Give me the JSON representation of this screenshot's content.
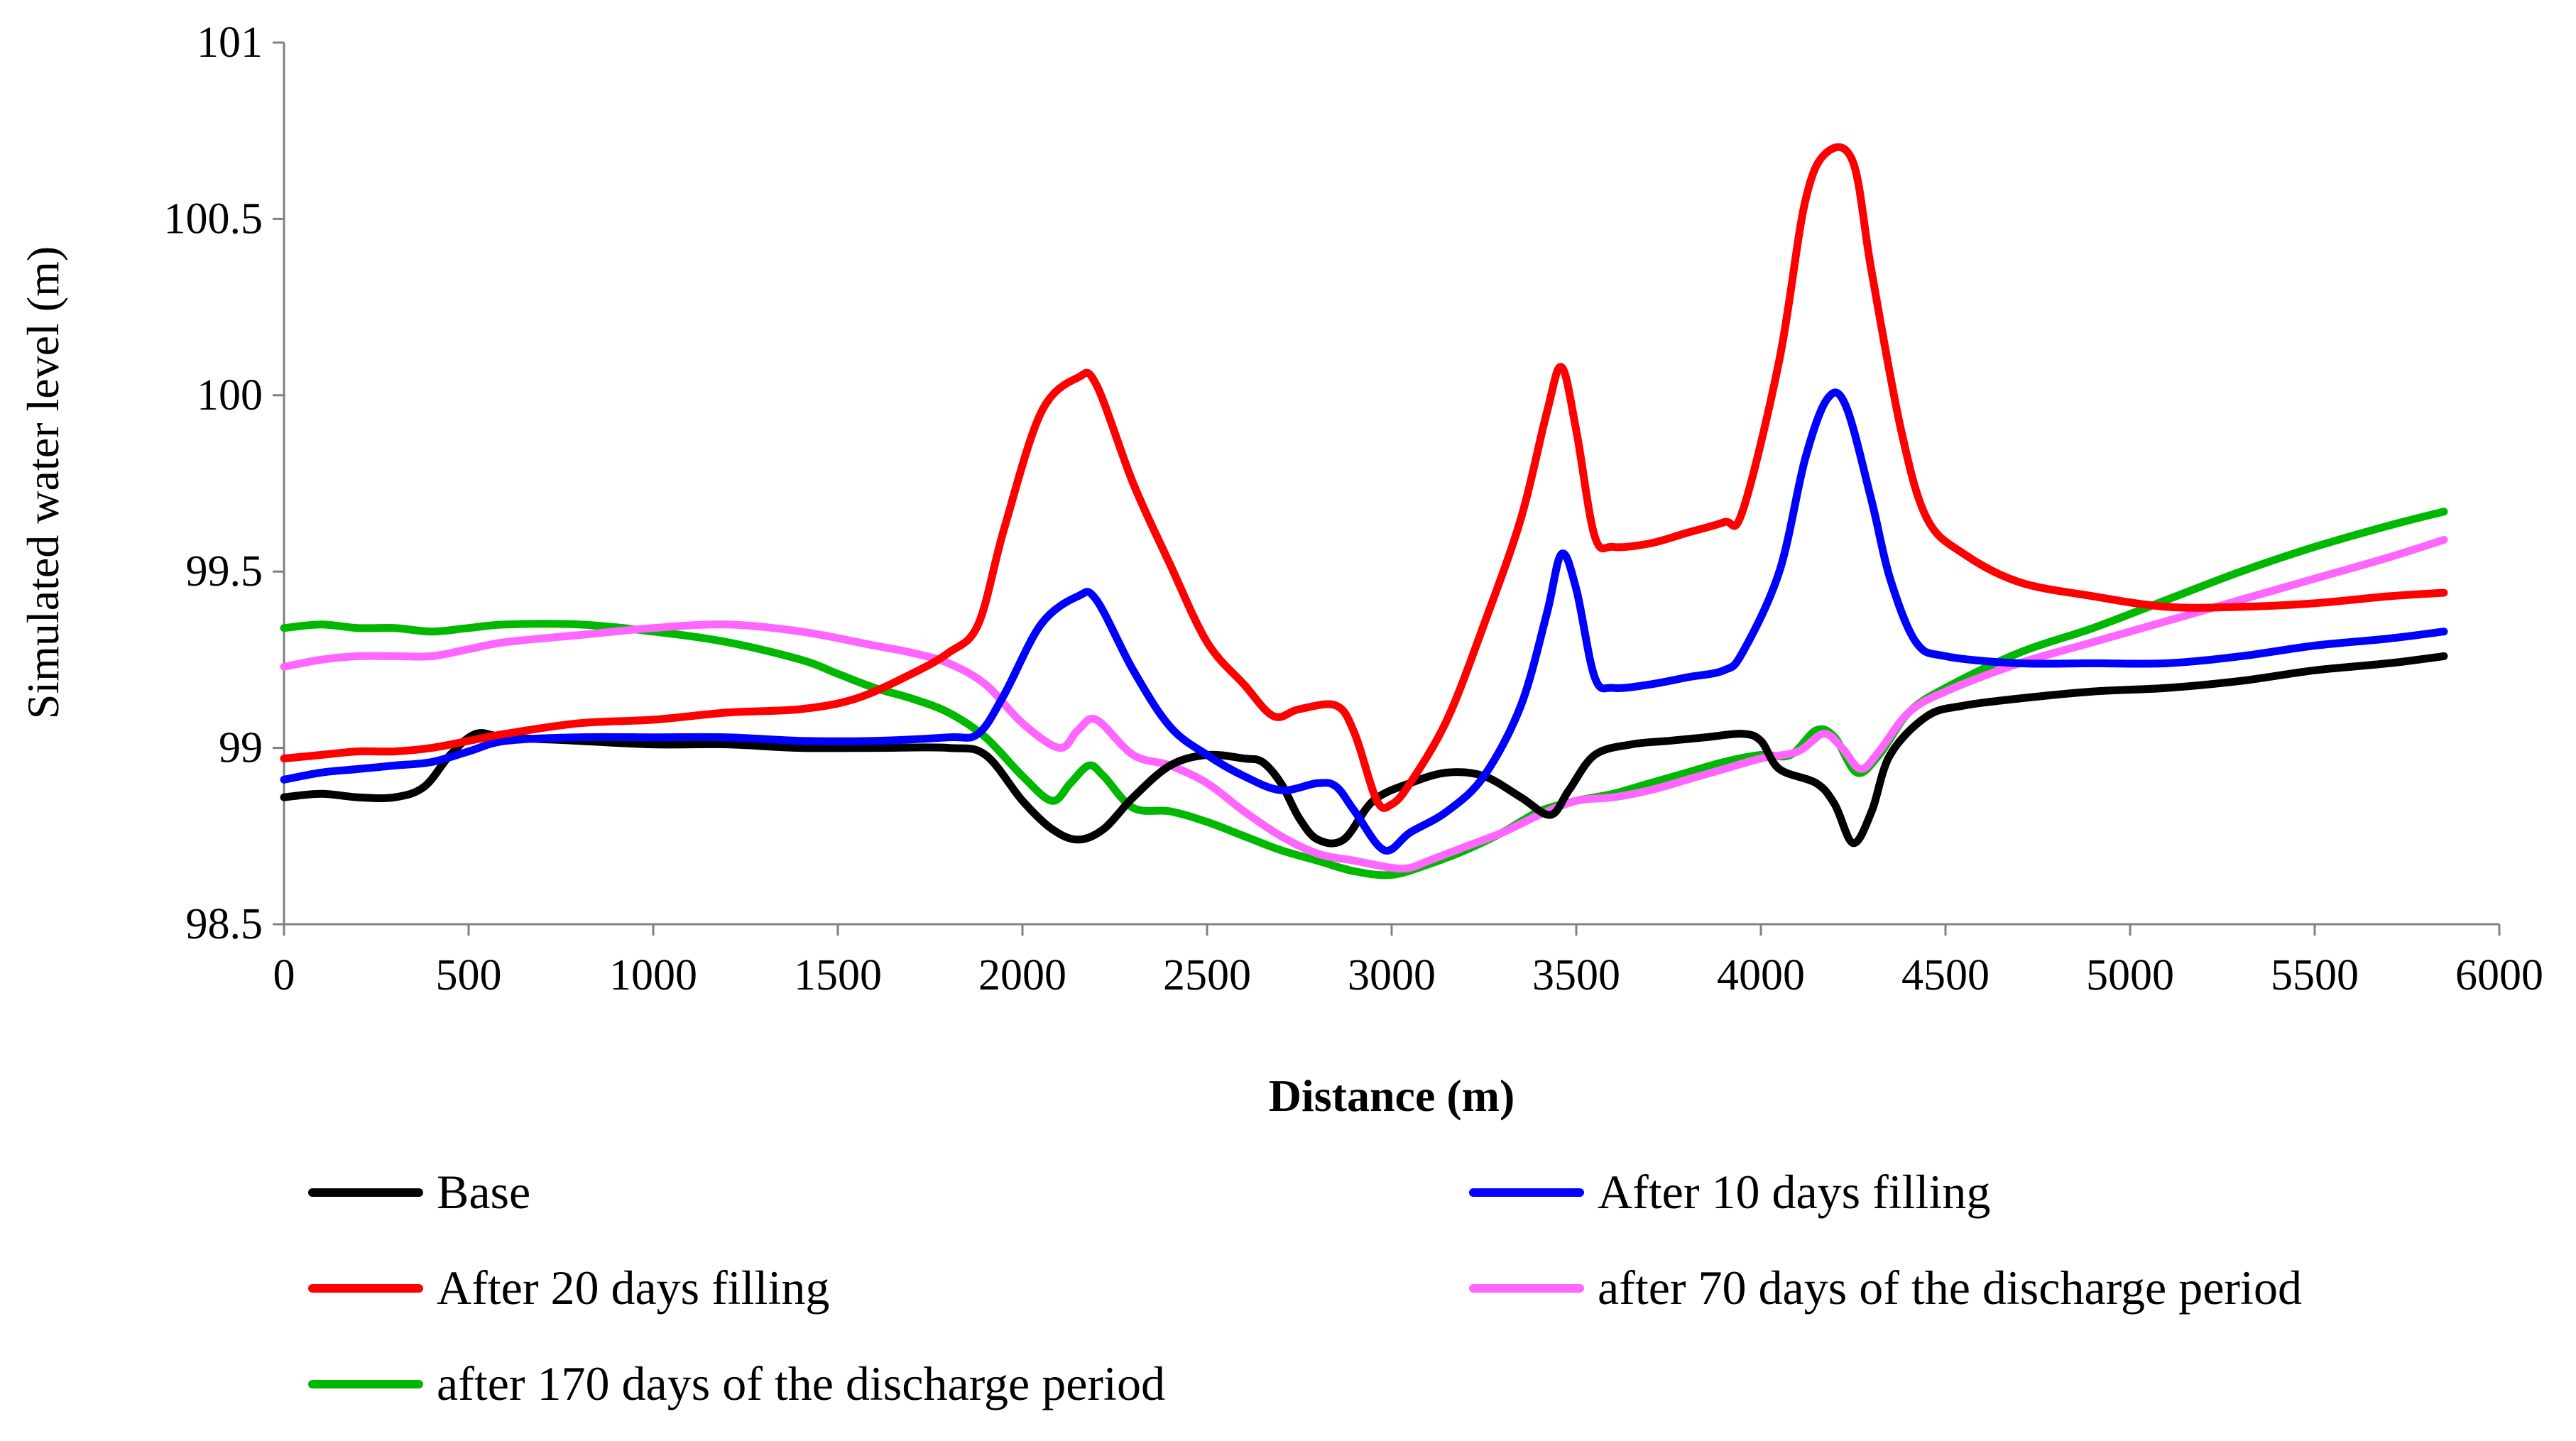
{
  "chart_data": {
    "type": "line",
    "title": "",
    "xlabel": "Distance (m)",
    "ylabel": "Simulated water level (m)",
    "xlim": [
      0,
      6000
    ],
    "ylim": [
      98.5,
      101
    ],
    "x_ticks": [
      0,
      500,
      1000,
      1500,
      2000,
      2500,
      3000,
      3500,
      4000,
      4500,
      5000,
      5500,
      6000
    ],
    "y_ticks": [
      98.5,
      99,
      99.5,
      100,
      100.5,
      101
    ],
    "y_tick_labels": [
      "98.5",
      "99",
      "99.5",
      "100",
      "100.5",
      "101"
    ],
    "grid": false,
    "legend_position": "bottom",
    "series": [
      {
        "name": "Base",
        "color": "#000000",
        "points": [
          [
            0,
            98.86
          ],
          [
            100,
            98.87
          ],
          [
            200,
            98.86
          ],
          [
            300,
            98.86
          ],
          [
            380,
            98.89
          ],
          [
            450,
            98.98
          ],
          [
            520,
            99.04
          ],
          [
            600,
            99.03
          ],
          [
            800,
            99.02
          ],
          [
            1000,
            99.01
          ],
          [
            1200,
            99.01
          ],
          [
            1400,
            99.0
          ],
          [
            1600,
            99.0
          ],
          [
            1800,
            99.0
          ],
          [
            1900,
            98.98
          ],
          [
            2000,
            98.85
          ],
          [
            2080,
            98.77
          ],
          [
            2150,
            98.74
          ],
          [
            2220,
            98.77
          ],
          [
            2300,
            98.86
          ],
          [
            2400,
            98.95
          ],
          [
            2500,
            98.98
          ],
          [
            2600,
            98.97
          ],
          [
            2650,
            98.96
          ],
          [
            2700,
            98.9
          ],
          [
            2750,
            98.8
          ],
          [
            2800,
            98.74
          ],
          [
            2870,
            98.74
          ],
          [
            2950,
            98.85
          ],
          [
            3050,
            98.9
          ],
          [
            3150,
            98.93
          ],
          [
            3250,
            98.92
          ],
          [
            3350,
            98.86
          ],
          [
            3430,
            98.81
          ],
          [
            3480,
            98.88
          ],
          [
            3550,
            98.98
          ],
          [
            3650,
            99.01
          ],
          [
            3750,
            99.02
          ],
          [
            3850,
            99.03
          ],
          [
            3950,
            99.04
          ],
          [
            4000,
            99.02
          ],
          [
            4050,
            98.94
          ],
          [
            4150,
            98.9
          ],
          [
            4200,
            98.84
          ],
          [
            4250,
            98.73
          ],
          [
            4300,
            98.82
          ],
          [
            4350,
            98.98
          ],
          [
            4450,
            99.09
          ],
          [
            4550,
            99.12
          ],
          [
            4700,
            99.14
          ],
          [
            4900,
            99.16
          ],
          [
            5100,
            99.17
          ],
          [
            5300,
            99.19
          ],
          [
            5500,
            99.22
          ],
          [
            5700,
            99.24
          ],
          [
            5850,
            99.26
          ]
        ]
      },
      {
        "name": "After 10 days filling",
        "color": "#0000ff",
        "points": [
          [
            0,
            98.91
          ],
          [
            100,
            98.93
          ],
          [
            200,
            98.94
          ],
          [
            300,
            98.95
          ],
          [
            400,
            98.96
          ],
          [
            500,
            98.99
          ],
          [
            600,
            99.02
          ],
          [
            800,
            99.03
          ],
          [
            1000,
            99.03
          ],
          [
            1200,
            99.03
          ],
          [
            1400,
            99.02
          ],
          [
            1600,
            99.02
          ],
          [
            1800,
            99.03
          ],
          [
            1880,
            99.04
          ],
          [
            1950,
            99.15
          ],
          [
            2050,
            99.35
          ],
          [
            2150,
            99.43
          ],
          [
            2200,
            99.42
          ],
          [
            2300,
            99.22
          ],
          [
            2400,
            99.06
          ],
          [
            2500,
            98.98
          ],
          [
            2600,
            98.92
          ],
          [
            2700,
            98.88
          ],
          [
            2800,
            98.9
          ],
          [
            2850,
            98.89
          ],
          [
            2900,
            98.82
          ],
          [
            2980,
            98.71
          ],
          [
            3050,
            98.76
          ],
          [
            3150,
            98.82
          ],
          [
            3250,
            98.92
          ],
          [
            3350,
            99.12
          ],
          [
            3420,
            99.38
          ],
          [
            3460,
            99.55
          ],
          [
            3500,
            99.45
          ],
          [
            3550,
            99.2
          ],
          [
            3600,
            99.17
          ],
          [
            3700,
            99.18
          ],
          [
            3800,
            99.2
          ],
          [
            3900,
            99.22
          ],
          [
            3950,
            99.27
          ],
          [
            4050,
            99.5
          ],
          [
            4120,
            99.82
          ],
          [
            4180,
            99.99
          ],
          [
            4230,
            99.97
          ],
          [
            4300,
            99.7
          ],
          [
            4350,
            99.48
          ],
          [
            4420,
            99.3
          ],
          [
            4500,
            99.26
          ],
          [
            4700,
            99.24
          ],
          [
            4900,
            99.24
          ],
          [
            5100,
            99.24
          ],
          [
            5300,
            99.26
          ],
          [
            5500,
            99.29
          ],
          [
            5700,
            99.31
          ],
          [
            5850,
            99.33
          ]
        ]
      },
      {
        "name": "After 20 days filling",
        "color": "#ff0000",
        "points": [
          [
            0,
            98.97
          ],
          [
            100,
            98.98
          ],
          [
            200,
            98.99
          ],
          [
            300,
            98.99
          ],
          [
            400,
            99.0
          ],
          [
            500,
            99.02
          ],
          [
            600,
            99.04
          ],
          [
            800,
            99.07
          ],
          [
            1000,
            99.08
          ],
          [
            1200,
            99.1
          ],
          [
            1400,
            99.11
          ],
          [
            1550,
            99.14
          ],
          [
            1700,
            99.21
          ],
          [
            1800,
            99.27
          ],
          [
            1880,
            99.35
          ],
          [
            1950,
            99.62
          ],
          [
            2050,
            99.95
          ],
          [
            2150,
            100.05
          ],
          [
            2200,
            100.03
          ],
          [
            2300,
            99.75
          ],
          [
            2400,
            99.52
          ],
          [
            2500,
            99.3
          ],
          [
            2600,
            99.18
          ],
          [
            2680,
            99.09
          ],
          [
            2750,
            99.11
          ],
          [
            2850,
            99.12
          ],
          [
            2900,
            99.04
          ],
          [
            2960,
            98.85
          ],
          [
            3000,
            98.84
          ],
          [
            3050,
            98.9
          ],
          [
            3150,
            99.08
          ],
          [
            3250,
            99.35
          ],
          [
            3350,
            99.65
          ],
          [
            3420,
            99.95
          ],
          [
            3460,
            100.08
          ],
          [
            3500,
            99.9
          ],
          [
            3550,
            99.6
          ],
          [
            3600,
            99.57
          ],
          [
            3700,
            99.58
          ],
          [
            3800,
            99.61
          ],
          [
            3900,
            99.64
          ],
          [
            3950,
            99.67
          ],
          [
            4050,
            100.1
          ],
          [
            4120,
            100.55
          ],
          [
            4180,
            100.69
          ],
          [
            4250,
            100.66
          ],
          [
            4300,
            100.35
          ],
          [
            4380,
            99.9
          ],
          [
            4450,
            99.65
          ],
          [
            4550,
            99.55
          ],
          [
            4700,
            99.47
          ],
          [
            4900,
            99.43
          ],
          [
            5100,
            99.4
          ],
          [
            5300,
            99.4
          ],
          [
            5500,
            99.41
          ],
          [
            5700,
            99.43
          ],
          [
            5850,
            99.44
          ]
        ]
      },
      {
        "name": "after 70 days of the discharge period",
        "color": "#ff66ff",
        "points": [
          [
            0,
            99.23
          ],
          [
            100,
            99.25
          ],
          [
            200,
            99.26
          ],
          [
            300,
            99.26
          ],
          [
            400,
            99.26
          ],
          [
            500,
            99.28
          ],
          [
            600,
            99.3
          ],
          [
            800,
            99.32
          ],
          [
            1000,
            99.34
          ],
          [
            1200,
            99.35
          ],
          [
            1400,
            99.33
          ],
          [
            1600,
            99.29
          ],
          [
            1700,
            99.27
          ],
          [
            1800,
            99.24
          ],
          [
            1900,
            99.18
          ],
          [
            2000,
            99.07
          ],
          [
            2100,
            99.0
          ],
          [
            2150,
            99.05
          ],
          [
            2200,
            99.08
          ],
          [
            2300,
            98.98
          ],
          [
            2400,
            98.95
          ],
          [
            2500,
            98.9
          ],
          [
            2600,
            98.82
          ],
          [
            2700,
            98.75
          ],
          [
            2800,
            98.7
          ],
          [
            2900,
            98.68
          ],
          [
            3000,
            98.66
          ],
          [
            3050,
            98.66
          ],
          [
            3100,
            98.68
          ],
          [
            3200,
            98.72
          ],
          [
            3300,
            98.76
          ],
          [
            3400,
            98.81
          ],
          [
            3500,
            98.85
          ],
          [
            3600,
            98.86
          ],
          [
            3700,
            98.88
          ],
          [
            3800,
            98.91
          ],
          [
            3900,
            98.94
          ],
          [
            4000,
            98.97
          ],
          [
            4100,
            98.99
          ],
          [
            4170,
            99.04
          ],
          [
            4220,
            99.0
          ],
          [
            4270,
            98.94
          ],
          [
            4320,
            98.99
          ],
          [
            4400,
            99.1
          ],
          [
            4500,
            99.16
          ],
          [
            4700,
            99.24
          ],
          [
            4900,
            99.3
          ],
          [
            5100,
            99.36
          ],
          [
            5300,
            99.42
          ],
          [
            5500,
            99.48
          ],
          [
            5700,
            99.54
          ],
          [
            5850,
            99.59
          ]
        ]
      },
      {
        "name": "after 170 days of the discharge period",
        "color": "#00b800",
        "points": [
          [
            0,
            99.34
          ],
          [
            100,
            99.35
          ],
          [
            200,
            99.34
          ],
          [
            300,
            99.34
          ],
          [
            400,
            99.33
          ],
          [
            500,
            99.34
          ],
          [
            600,
            99.35
          ],
          [
            800,
            99.35
          ],
          [
            1000,
            99.33
          ],
          [
            1200,
            99.3
          ],
          [
            1400,
            99.25
          ],
          [
            1500,
            99.21
          ],
          [
            1600,
            99.17
          ],
          [
            1700,
            99.14
          ],
          [
            1800,
            99.1
          ],
          [
            1900,
            99.03
          ],
          [
            2000,
            98.92
          ],
          [
            2080,
            98.85
          ],
          [
            2130,
            98.9
          ],
          [
            2180,
            98.95
          ],
          [
            2220,
            98.92
          ],
          [
            2300,
            98.83
          ],
          [
            2400,
            98.82
          ],
          [
            2500,
            98.79
          ],
          [
            2600,
            98.75
          ],
          [
            2700,
            98.71
          ],
          [
            2800,
            98.68
          ],
          [
            2900,
            98.65
          ],
          [
            3000,
            98.64
          ],
          [
            3100,
            98.67
          ],
          [
            3200,
            98.71
          ],
          [
            3300,
            98.76
          ],
          [
            3400,
            98.82
          ],
          [
            3500,
            98.85
          ],
          [
            3600,
            98.87
          ],
          [
            3700,
            98.9
          ],
          [
            3800,
            98.93
          ],
          [
            3900,
            98.96
          ],
          [
            4000,
            98.98
          ],
          [
            4080,
            98.98
          ],
          [
            4150,
            99.05
          ],
          [
            4200,
            99.03
          ],
          [
            4260,
            98.93
          ],
          [
            4320,
            98.98
          ],
          [
            4400,
            99.1
          ],
          [
            4500,
            99.17
          ],
          [
            4700,
            99.27
          ],
          [
            4900,
            99.34
          ],
          [
            5100,
            99.42
          ],
          [
            5300,
            99.5
          ],
          [
            5500,
            99.57
          ],
          [
            5700,
            99.63
          ],
          [
            5850,
            99.67
          ]
        ]
      }
    ]
  }
}
